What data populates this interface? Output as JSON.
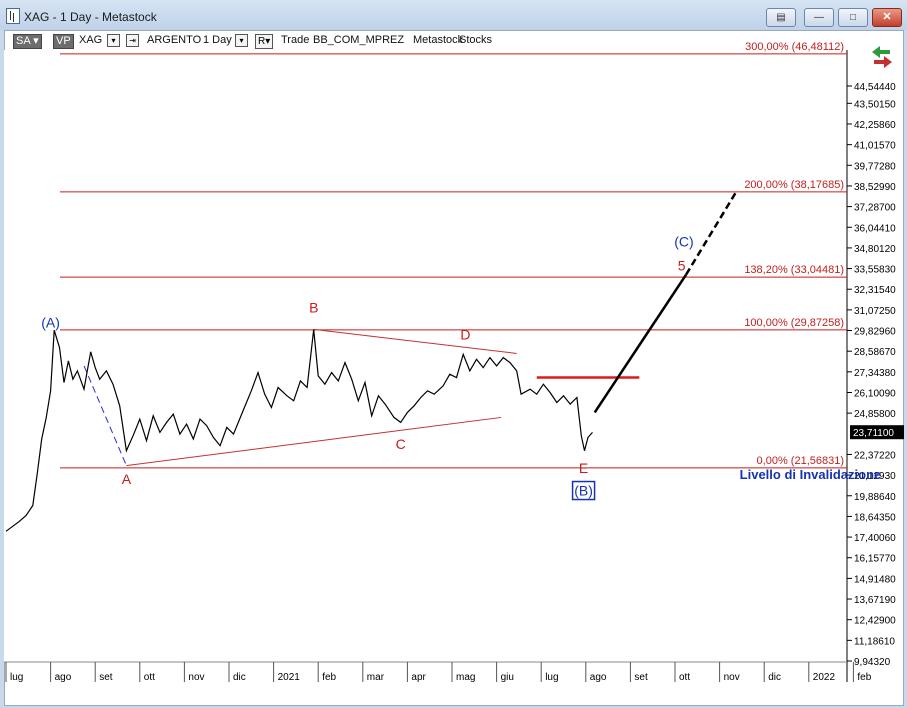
{
  "window": {
    "title": "XAG - 1 Day - Metastock"
  },
  "toolbar": {
    "sa_label": "SA",
    "vp_label": "VP",
    "symbol": "XAG",
    "security_name": "ARGENTO",
    "periodicity": "1 Day",
    "r_label": "R",
    "mode": "Trade",
    "source": "BB_COM_MPREZ",
    "app": "Metastock",
    "market": "Stocks"
  },
  "chart_data": {
    "type": "line",
    "price_axis_ticks": [
      "44,54440",
      "43,50150",
      "42,25860",
      "41,01570",
      "39,77280",
      "38,52990",
      "37,28700",
      "36,04410",
      "34,80120",
      "33,55830",
      "32,31540",
      "31,07250",
      "29,82960",
      "28,58670",
      "27,34380",
      "26,10090",
      "24,85800",
      "22,37220",
      "21,12930",
      "19,88640",
      "18,64350",
      "17,40060",
      "16,15770",
      "14,91480",
      "13,67190",
      "12,42900",
      "11,18610",
      "9,94320"
    ],
    "price_axis_values": [
      44.5444,
      43.5015,
      42.2586,
      41.0157,
      39.7728,
      38.5299,
      37.287,
      36.0441,
      34.8012,
      33.5583,
      32.3154,
      31.0725,
      29.8296,
      28.5867,
      27.3438,
      26.1009,
      24.858,
      22.3722,
      21.1293,
      19.8864,
      18.6435,
      17.4006,
      16.1577,
      14.9148,
      13.6719,
      12.429,
      11.1861,
      9.9432
    ],
    "current_price_label": "23,71100",
    "current_price": 23.711,
    "time_axis_labels": [
      "lug",
      "ago",
      "set",
      "ott",
      "nov",
      "dic",
      "2021",
      "feb",
      "mar",
      "apr",
      "mag",
      "giu",
      "lug",
      "ago",
      "set",
      "ott",
      "nov",
      "dic",
      "2022",
      "feb"
    ],
    "time_axis_index": [
      0,
      1,
      2,
      3,
      4,
      5,
      6,
      7,
      8,
      9,
      10,
      11,
      12,
      13,
      14,
      15,
      16,
      17,
      18,
      19
    ],
    "x_unit": "months from Jul 2020",
    "fib_levels": [
      {
        "label": "300,00% (46,48112)",
        "price": 46.48112
      },
      {
        "label": "200,00% (38,17685)",
        "price": 38.17685
      },
      {
        "label": "138,20% (33,04481)",
        "price": 33.04481
      },
      {
        "label": "100,00% (29,87258)",
        "price": 29.87258
      },
      {
        "label": "0,00% (21,56831)",
        "price": 21.56831
      }
    ],
    "wave_labels": [
      {
        "text": "(A)",
        "x": 1.0,
        "price": 30.0,
        "color": "#1533b0"
      },
      {
        "text": "A",
        "x": 2.7,
        "price": 20.6,
        "color": "#cc1b1b"
      },
      {
        "text": "B",
        "x": 6.9,
        "price": 30.9,
        "color": "#cc1b1b"
      },
      {
        "text": "C",
        "x": 8.85,
        "price": 22.7,
        "color": "#cc1b1b"
      },
      {
        "text": "D",
        "x": 10.3,
        "price": 29.3,
        "color": "#cc1b1b"
      },
      {
        "text": "E",
        "x": 12.95,
        "price": 21.25,
        "color": "#cc1b1b"
      },
      {
        "text": "(B)",
        "x": 12.95,
        "price": 19.9,
        "color": "#1533b0"
      },
      {
        "text": "(C)",
        "x": 15.2,
        "price": 34.9,
        "color": "#1533b0"
      },
      {
        "text": "5",
        "x": 15.15,
        "price": 33.45,
        "color": "#cc1b1b"
      }
    ],
    "annotation": {
      "text": "Livello di Invalidazione",
      "x": 16.45,
      "price": 20.9,
      "color": "#1533b0"
    },
    "trendlines": [
      {
        "from": [
          2.7,
          21.7
        ],
        "to": [
          11.1,
          24.6
        ],
        "color": "#c43030",
        "width": 1
      },
      {
        "from": [
          6.9,
          29.9
        ],
        "to": [
          11.45,
          28.45
        ],
        "color": "#c43030",
        "width": 1
      },
      {
        "from": [
          11.9,
          27.0
        ],
        "to": [
          14.2,
          27.0
        ],
        "color": "#e01818",
        "width": 2.5
      },
      {
        "from": [
          13.2,
          24.9
        ],
        "to": [
          15.25,
          33.2
        ],
        "color": "#000000",
        "width": 2.5
      }
    ],
    "dashed_lines": [
      {
        "from": [
          15.25,
          33.2
        ],
        "to": [
          16.4,
          38.3
        ],
        "color": "#000000",
        "width": 2.5
      },
      {
        "from": [
          1.75,
          27.7
        ],
        "to": [
          2.7,
          21.7
        ],
        "color": "#2a2ad8",
        "width": 1
      }
    ],
    "series": [
      {
        "values": [
          [
            0.0,
            17.75
          ],
          [
            0.15,
            18.05
          ],
          [
            0.3,
            18.35
          ],
          [
            0.45,
            18.7
          ],
          [
            0.6,
            19.3
          ],
          [
            0.7,
            21.2
          ],
          [
            0.8,
            23.3
          ],
          [
            0.9,
            24.55
          ],
          [
            1.0,
            26.2
          ],
          [
            1.08,
            29.85
          ],
          [
            1.2,
            28.8
          ],
          [
            1.3,
            26.7
          ],
          [
            1.4,
            28.0
          ],
          [
            1.5,
            26.9
          ],
          [
            1.6,
            27.4
          ],
          [
            1.75,
            26.3
          ],
          [
            1.9,
            28.55
          ],
          [
            2.0,
            27.6
          ],
          [
            2.1,
            26.9
          ],
          [
            2.25,
            27.4
          ],
          [
            2.4,
            26.6
          ],
          [
            2.55,
            25.3
          ],
          [
            2.7,
            22.6
          ],
          [
            2.85,
            23.5
          ],
          [
            3.0,
            24.5
          ],
          [
            3.15,
            23.2
          ],
          [
            3.3,
            24.7
          ],
          [
            3.45,
            23.7
          ],
          [
            3.6,
            24.3
          ],
          [
            3.75,
            24.8
          ],
          [
            3.9,
            23.6
          ],
          [
            4.05,
            24.2
          ],
          [
            4.2,
            23.3
          ],
          [
            4.35,
            24.5
          ],
          [
            4.5,
            24.1
          ],
          [
            4.65,
            23.4
          ],
          [
            4.8,
            22.9
          ],
          [
            4.95,
            24.0
          ],
          [
            5.1,
            23.6
          ],
          [
            5.3,
            24.9
          ],
          [
            5.5,
            26.2
          ],
          [
            5.65,
            27.3
          ],
          [
            5.8,
            26.0
          ],
          [
            5.95,
            25.2
          ],
          [
            6.1,
            26.4
          ],
          [
            6.3,
            25.9
          ],
          [
            6.45,
            25.6
          ],
          [
            6.6,
            26.8
          ],
          [
            6.75,
            26.4
          ],
          [
            6.9,
            29.9
          ],
          [
            7.0,
            27.1
          ],
          [
            7.15,
            26.6
          ],
          [
            7.3,
            27.3
          ],
          [
            7.45,
            26.8
          ],
          [
            7.6,
            27.9
          ],
          [
            7.75,
            26.9
          ],
          [
            7.9,
            25.6
          ],
          [
            8.05,
            26.7
          ],
          [
            8.2,
            24.7
          ],
          [
            8.35,
            25.9
          ],
          [
            8.5,
            25.4
          ],
          [
            8.7,
            24.6
          ],
          [
            8.85,
            24.3
          ],
          [
            9.0,
            24.9
          ],
          [
            9.15,
            25.3
          ],
          [
            9.3,
            25.8
          ],
          [
            9.45,
            26.2
          ],
          [
            9.6,
            26.0
          ],
          [
            9.8,
            26.5
          ],
          [
            9.95,
            27.2
          ],
          [
            10.1,
            27.0
          ],
          [
            10.25,
            28.4
          ],
          [
            10.4,
            27.4
          ],
          [
            10.55,
            28.1
          ],
          [
            10.7,
            27.6
          ],
          [
            10.85,
            28.2
          ],
          [
            11.0,
            27.7
          ],
          [
            11.15,
            28.2
          ],
          [
            11.3,
            27.9
          ],
          [
            11.45,
            27.4
          ],
          [
            11.55,
            26.0
          ],
          [
            11.75,
            26.3
          ],
          [
            11.9,
            26.0
          ],
          [
            12.05,
            26.6
          ],
          [
            12.2,
            26.1
          ],
          [
            12.35,
            25.5
          ],
          [
            12.5,
            25.9
          ],
          [
            12.65,
            25.4
          ],
          [
            12.8,
            25.8
          ],
          [
            12.9,
            23.5
          ],
          [
            12.97,
            22.6
          ],
          [
            13.05,
            23.4
          ],
          [
            13.15,
            23.7
          ]
        ]
      }
    ],
    "colors": {
      "fib_line": "#c41e1e",
      "fib_text": "#c41e1e",
      "price_line": "#000000",
      "axis_text": "#000000",
      "current_price_box": "#000000"
    }
  }
}
